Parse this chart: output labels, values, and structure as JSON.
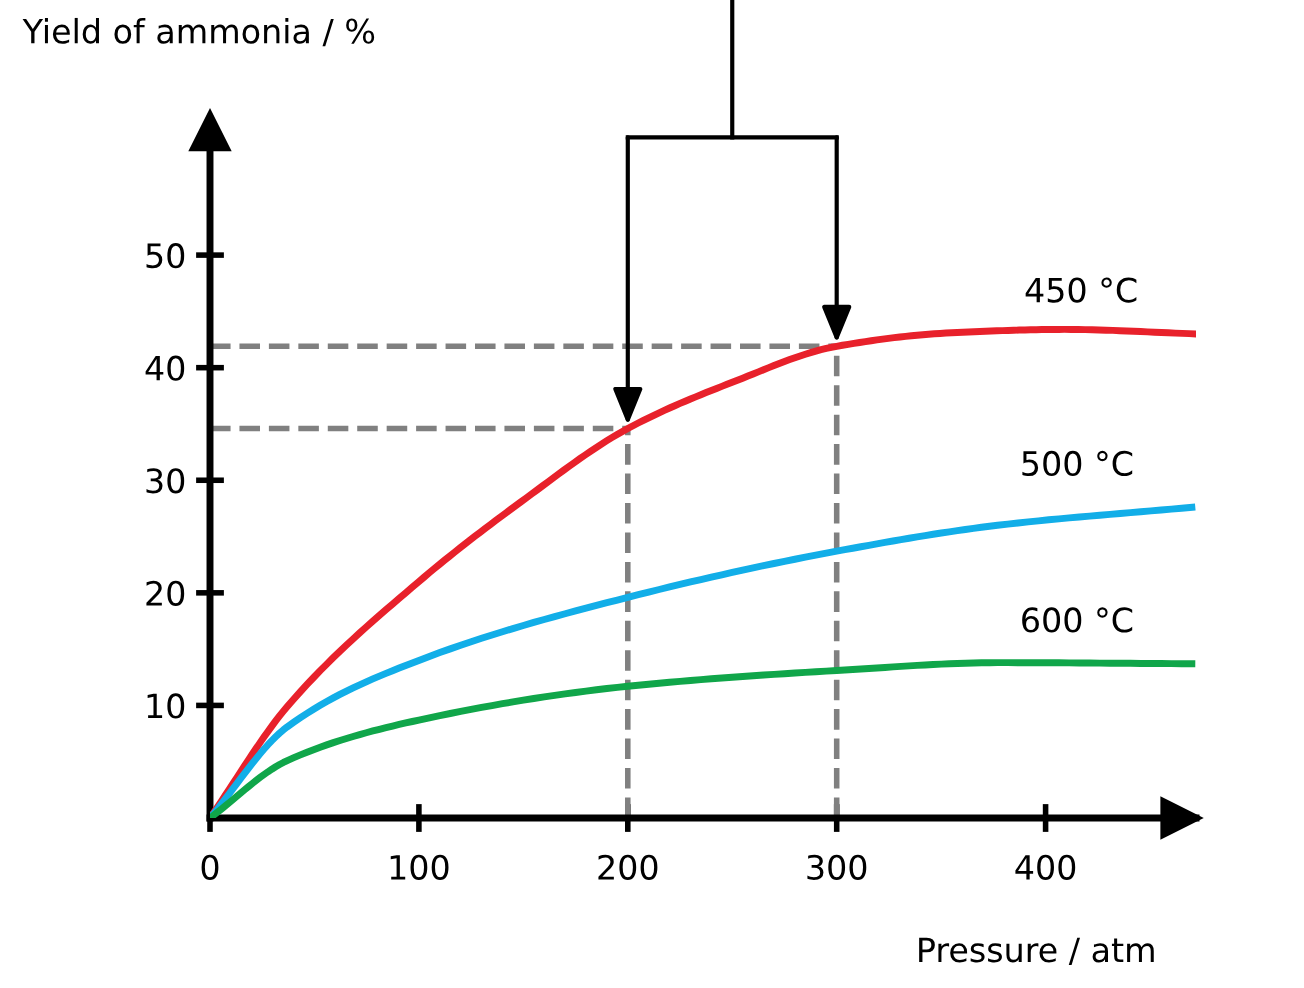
{
  "chart_data": {
    "type": "line",
    "xlabel": "Pressure / atm",
    "ylabel": "Yield of ammonia / %",
    "xlim": [
      0,
      472
    ],
    "ylim": [
      0,
      62
    ],
    "xticks": [
      {
        "value": 0,
        "label": "0"
      },
      100,
      200,
      300,
      400
    ],
    "yticks": [
      10,
      20,
      30,
      40,
      50
    ],
    "grid": false,
    "legend": false,
    "marker": "none",
    "line_style": "solid",
    "ref_lines": [
      {
        "axis": "x",
        "value": 200,
        "color": "#808080",
        "line_style": "dashed"
      },
      {
        "axis": "x",
        "value": 300,
        "color": "#808080",
        "line_style": "dashed"
      },
      {
        "axis": "y",
        "value": 34.6,
        "color": "#808080",
        "line_style": "dashed"
      },
      {
        "axis": "y",
        "value": 41.9,
        "color": "#808080",
        "line_style": "dashed"
      }
    ],
    "series": [
      {
        "name": "450 °C",
        "color": "#e8212b",
        "x": [
          0,
          37,
          100,
          149,
          200,
          250,
          300,
          355,
          409,
          472
        ],
        "values": [
          0,
          9.9,
          21.0,
          28.1,
          34.6,
          38.7,
          41.9,
          43.1,
          43.4,
          43.0
        ]
      },
      {
        "name": "500 °C",
        "color": "#12aee8",
        "x": [
          0,
          37,
          100,
          200,
          300,
          377,
          470
        ],
        "values": [
          0,
          8.1,
          14.0,
          19.6,
          23.7,
          26.0,
          27.6
        ]
      },
      {
        "name": "600 °C",
        "color": "#10a64a",
        "x": [
          0,
          37,
          100,
          200,
          300,
          377,
          470
        ],
        "values": [
          0,
          5.1,
          8.7,
          11.7,
          13.1,
          13.8,
          13.7
        ]
      }
    ]
  }
}
